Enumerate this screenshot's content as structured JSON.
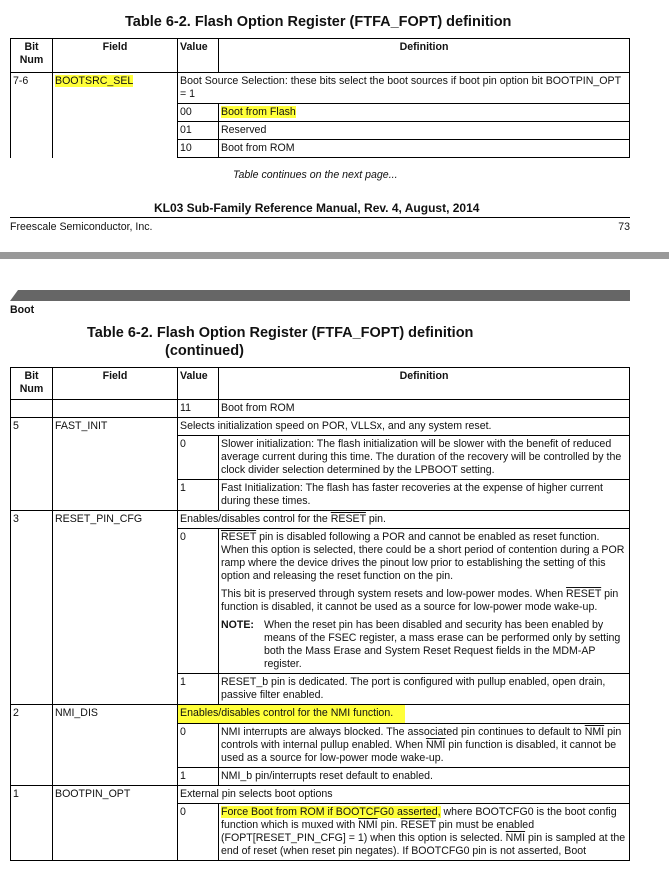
{
  "page1": {
    "table_title": "Table 6-2.  Flash Option Register (FTFA_FOPT) definition",
    "headers": [
      "Bit Num",
      "Field",
      "Value",
      "Definition"
    ],
    "rows": {
      "bit": "7-6",
      "field": "BOOTSRC_SEL",
      "desc": "Boot Source Selection: these bits select the boot sources if boot pin option bit BOOTPIN_OPT = 1",
      "values": [
        {
          "value": "00",
          "def": "Boot from Flash"
        },
        {
          "value": "01",
          "def": "Reserved"
        },
        {
          "value": "10",
          "def": "Boot from ROM"
        }
      ]
    },
    "continues": "Table continues on the next page...",
    "footer_title": "KL03 Sub-Family Reference Manual, Rev. 4, August, 2014",
    "company": "Freescale Semiconductor, Inc.",
    "page_number": "73"
  },
  "page2": {
    "section": "Boot",
    "table_title": "Table 6-2.  Flash Option Register (FTFA_FOPT) definition",
    "table_title_cont": "(continued)",
    "headers": [
      "Bit Num",
      "Field",
      "Value",
      "Definition"
    ],
    "row11": {
      "value": "11",
      "def": "Boot from ROM"
    },
    "fast_init": {
      "bit": "5",
      "field": "FAST_INIT",
      "desc": "Selects initialization speed on POR, VLLSx, and any system reset.",
      "v0": "0",
      "d0": "Slower initialization: The flash initialization will be slower with the benefit of reduced average current during this time. The duration of the recovery will be controlled by the clock divider selection determined by the LPBOOT setting.",
      "v1": "1",
      "d1": "Fast Initialization: The flash has faster recoveries at the expense of higher current during these times."
    },
    "reset_pin_cfg": {
      "bit": "3",
      "field": "RESET_PIN_CFG",
      "desc_a": "Enables/disables control for the ",
      "desc_ov": "RESET",
      "desc_b": " pin.",
      "v0": "0",
      "d0_ov": "RESET",
      "d0": " pin is disabled following a POR and cannot be enabled as reset function. When this option is selected, there could be a short period of contention during a POR ramp where the device drives the pinout low prior to establishing the setting of this option and releasing the reset function on the pin.",
      "d0p2_a": "This bit is preserved through system resets and low-power modes. When ",
      "d0p2_ov": "RESET",
      "d0p2_b": " pin function is disabled, it cannot be used as a source for low-power mode wake-up.",
      "note_label": "NOTE:",
      "note": "When the reset pin has been disabled and security has been enabled by means of the FSEC register, a mass erase can be performed only by setting both the Mass Erase and System Reset Request fields in the MDM-AP register.",
      "v1": "1",
      "d1": "RESET_b pin is dedicated. The port is configured with pullup enabled, open drain, passive filter enabled."
    },
    "nmi_dis": {
      "bit": "2",
      "field": "NMI_DIS",
      "desc": "Enables/disables control for the NMI function.",
      "v0": "0",
      "d0_a": "NMI interrupts are always blocked. The associated pin continues to default to ",
      "d0_ov1": "NMI",
      "d0_b": " pin controls with internal pullup enabled. When ",
      "d0_ov2": "NMI",
      "d0_c": " pin function is disabled, it cannot be used as a source for low-power mode wake-up.",
      "v1": "1",
      "d1": "NMI_b pin/interrupts reset default to enabled."
    },
    "bootpin_opt": {
      "bit": "1",
      "field": "BOOTPIN_OPT",
      "desc": "External pin selects boot options",
      "v0": "0",
      "d0_hl": "Force Boot from ROM if BOOTCFG0 asserted,",
      "d0_a": " where BOOTCFG0 is the boot config function which is muxed with ",
      "d0_ov1": "NMI",
      "d0_b": " pin. ",
      "d0_ov2": "RESET",
      "d0_c": " pin must be enabled (FOPT[RESET_PIN_CFG] = 1) when this option is selected. ",
      "d0_ov3": "NMI",
      "d0_d": " pin is sampled at the end of reset (when reset pin negates). If BOOTCFG0 pin is not asserted, Boot"
    }
  },
  "colors": {
    "highlight": "#ffff3a",
    "page_gap": "#999999",
    "header_bar": "#666666"
  }
}
